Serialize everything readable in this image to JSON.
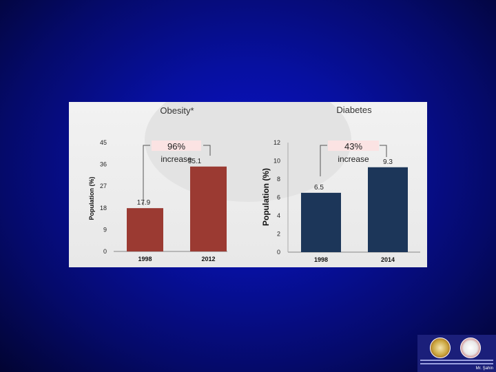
{
  "chart_data": [
    {
      "type": "bar",
      "title": "Obesity*",
      "ylabel": "Population (%)",
      "categories": [
        "1998",
        "2012"
      ],
      "values": [
        17.9,
        35.1
      ],
      "value_labels": [
        "17.9",
        "35.1"
      ],
      "ylim": [
        0,
        45
      ],
      "yticks": [
        "45",
        "36",
        "27",
        "18",
        "9",
        "0"
      ],
      "bar_color": "#9b3a32",
      "annotation": {
        "percent": "96%",
        "word": "increase"
      }
    },
    {
      "type": "bar",
      "title": "Diabetes",
      "ylabel": "Population (%)",
      "categories": [
        "1998",
        "2014"
      ],
      "values": [
        6.5,
        9.3
      ],
      "value_labels": [
        "6.5",
        "9.3"
      ],
      "ylim": [
        0,
        12
      ],
      "yticks": [
        "12",
        "10",
        "8",
        "6",
        "4",
        "2",
        "0"
      ],
      "bar_color": "#1c3659",
      "annotation": {
        "percent": "43%",
        "word": "increase"
      }
    }
  ],
  "logo": {
    "caption": "Mr. Şahin"
  }
}
